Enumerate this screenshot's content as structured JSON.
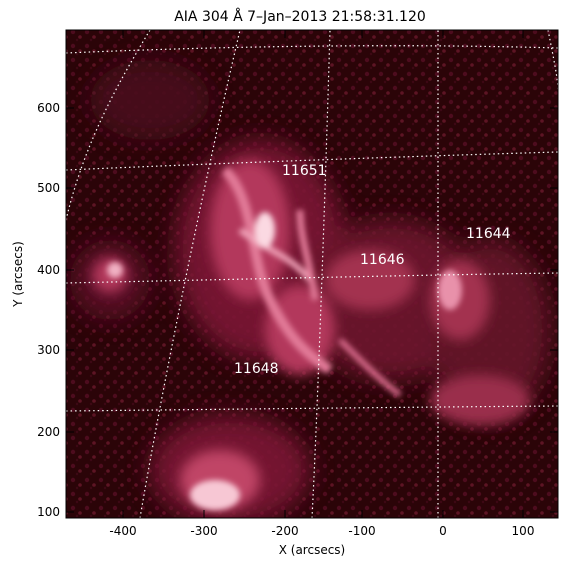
{
  "title": "AIA 304 Å  7–Jan–2013 21:58:31.120",
  "axes": {
    "xlabel": "X (arcsecs)",
    "ylabel": "Y (arcsecs)",
    "x_ticks": [
      "-400",
      "-300",
      "-200",
      "-100",
      "0",
      "100"
    ],
    "y_ticks": [
      "600",
      "500",
      "400",
      "300",
      "200",
      "100"
    ]
  },
  "active_regions": [
    {
      "label": "11651"
    },
    {
      "label": "11646"
    },
    {
      "label": "11644"
    },
    {
      "label": "11648"
    }
  ],
  "colors": {
    "background": "#2b0408",
    "mid": "#8a1a3a",
    "bright": "#e6809e",
    "highlight": "#ffe2ea",
    "grid": "#ffffff"
  }
}
